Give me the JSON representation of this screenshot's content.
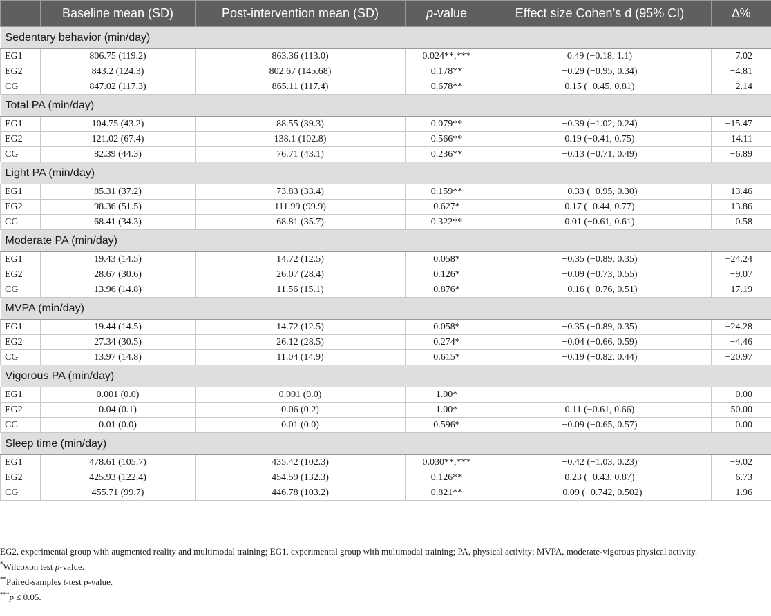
{
  "headers": {
    "group": "",
    "baseline": "Baseline mean (SD)",
    "post": "Post-intervention mean (SD)",
    "p_italic": "p",
    "p_rest": "-value",
    "effect": "Effect size Cohen’s d (95% CI)",
    "delta": "∆%"
  },
  "sections": [
    {
      "title": "Sedentary behavior (min/day)",
      "rows": [
        {
          "group": "EG1",
          "baseline": "806.75 (119.2)",
          "post": "863.36 (113.0)",
          "p": "0.024**,***",
          "effect": "0.49 (−0.18, 1.1)",
          "delta": "7.02"
        },
        {
          "group": "EG2",
          "baseline": "843.2 (124.3)",
          "post": "802.67 (145.68)",
          "p": "0.178**",
          "effect": "−0.29 (−0.95, 0.34)",
          "delta": "−4.81"
        },
        {
          "group": "CG",
          "baseline": "847.02 (117.3)",
          "post": "865.11 (117.4)",
          "p": "0.678**",
          "effect": "0.15 (−0.45, 0.81)",
          "delta": "2.14"
        }
      ]
    },
    {
      "title": "Total PA (min/day)",
      "rows": [
        {
          "group": "EG1",
          "baseline": "104.75 (43.2)",
          "post": "88.55 (39.3)",
          "p": "0.079**",
          "effect": "−0.39 (−1.02, 0.24)",
          "delta": "−15.47"
        },
        {
          "group": "EG2",
          "baseline": "121.02 (67.4)",
          "post": "138.1 (102.8)",
          "p": "0.566**",
          "effect": "0.19 (−0.41, 0.75)",
          "delta": "14.11"
        },
        {
          "group": "CG",
          "baseline": "82.39 (44.3)",
          "post": "76.71 (43.1)",
          "p": "0.236**",
          "effect": "−0.13 (−0.71, 0.49)",
          "delta": "−6.89"
        }
      ]
    },
    {
      "title": "Light PA (min/day)",
      "rows": [
        {
          "group": "EG1",
          "baseline": "85.31 (37.2)",
          "post": "73.83 (33.4)",
          "p": "0.159**",
          "effect": "−0.33 (−0.95, 0.30)",
          "delta": "−13.46"
        },
        {
          "group": "EG2",
          "baseline": "98.36 (51.5)",
          "post": "111.99 (99.9)",
          "p": "0.627*",
          "effect": "0.17 (−0.44, 0.77)",
          "delta": "13.86"
        },
        {
          "group": "CG",
          "baseline": "68.41 (34.3)",
          "post": "68.81 (35.7)",
          "p": "0.322**",
          "effect": "0.01 (−0.61, 0.61)",
          "delta": "0.58"
        }
      ]
    },
    {
      "title": "Moderate PA (min/day)",
      "rows": [
        {
          "group": "EG1",
          "baseline": "19.43 (14.5)",
          "post": "14.72 (12.5)",
          "p": "0.058*",
          "effect": "−0.35 (−0.89, 0.35)",
          "delta": "−24.24"
        },
        {
          "group": "EG2",
          "baseline": "28.67 (30.6)",
          "post": "26.07 (28.4)",
          "p": "0.126*",
          "effect": "−0.09 (−0.73, 0.55)",
          "delta": "−9.07"
        },
        {
          "group": "CG",
          "baseline": "13.96 (14.8)",
          "post": "11.56 (15.1)",
          "p": "0.876*",
          "effect": "−0.16 (−0.76, 0.51)",
          "delta": "−17.19"
        }
      ]
    },
    {
      "title": "MVPA (min/day)",
      "rows": [
        {
          "group": "EG1",
          "baseline": "19.44 (14.5)",
          "post": "14.72 (12.5)",
          "p": "0.058*",
          "effect": "−0.35 (−0.89, 0.35)",
          "delta": "−24.28"
        },
        {
          "group": "EG2",
          "baseline": "27.34 (30.5)",
          "post": "26.12 (28.5)",
          "p": "0.274*",
          "effect": "−0.04 (−0.66, 0.59)",
          "delta": "−4.46"
        },
        {
          "group": "CG",
          "baseline": "13.97 (14.8)",
          "post": "11.04 (14.9)",
          "p": "0.615*",
          "effect": "−0.19 (−0.82, 0.44)",
          "delta": "−20.97"
        }
      ]
    },
    {
      "title": "Vigorous PA (min/day)",
      "rows": [
        {
          "group": "EG1",
          "baseline": "0.001 (0.0)",
          "post": "0.001 (0.0)",
          "p": "1.00*",
          "effect": "",
          "delta": "0.00"
        },
        {
          "group": "EG2",
          "baseline": "0.04 (0.1)",
          "post": "0.06 (0.2)",
          "p": "1.00*",
          "effect": "0.11 (−0.61, 0.66)",
          "delta": "50.00"
        },
        {
          "group": "CG",
          "baseline": "0.01 (0.0)",
          "post": "0.01 (0.0)",
          "p": "0.596*",
          "effect": "−0.09 (−0.65, 0.57)",
          "delta": "0.00"
        }
      ]
    },
    {
      "title": "Sleep time (min/day)",
      "rows": [
        {
          "group": "EG1",
          "baseline": "478.61 (105.7)",
          "post": "435.42 (102.3)",
          "p": "0.030**,***",
          "effect": "−0.42 (−1.03, 0.23)",
          "delta": "−9.02"
        },
        {
          "group": "EG2",
          "baseline": "425.93 (122.4)",
          "post": "454.59 (132.3)",
          "p": "0.126**",
          "effect": "0.23 (−0.43, 0.87)",
          "delta": "6.73"
        },
        {
          "group": "CG",
          "baseline": "455.71 (99.7)",
          "post": "446.78 (103.2)",
          "p": "0.821**",
          "effect": "−0.09 (−0.742, 0.502)",
          "delta": "−1.96"
        }
      ]
    }
  ],
  "footnotes": {
    "abbreviations": "EG2, experimental group with augmented reality and multimodal training; EG1, experimental group with multimodal training; PA, physical activity; MVPA, moderate-vigorous physical activity.",
    "note1_mark": "*",
    "note1_text": "Wilcoxon test ",
    "note1_italic": "p",
    "note1_end": "-value.",
    "note2_mark": "**",
    "note2_text": "Paired-samples ",
    "note2_italic": "t",
    "note2_mid": "-test ",
    "note2_italic2": "p",
    "note2_end": "-value.",
    "note3_mark": "***",
    "note3_italic": "p",
    "note3_end": " ≤ 0.05."
  }
}
